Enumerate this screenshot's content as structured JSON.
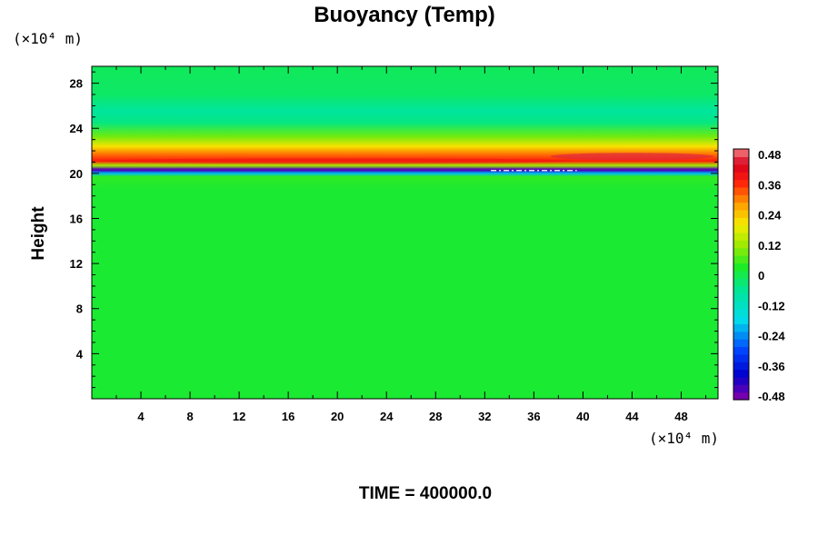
{
  "chart_data": {
    "type": "heatmap",
    "title": "Buoyancy (Temp)",
    "ylabel": "Height",
    "xlabel": "",
    "x_unit": "(×10⁴ m)",
    "y_unit": "(×10⁴ m)",
    "x_ticks": [
      4,
      8,
      12,
      16,
      20,
      24,
      28,
      32,
      36,
      40,
      44,
      48
    ],
    "y_ticks": [
      4,
      8,
      12,
      16,
      20,
      24,
      28
    ],
    "xlim": [
      0,
      51
    ],
    "ylim": [
      0,
      29.5
    ],
    "colorbar": {
      "ticks": [
        "0.48",
        "0.36",
        "0.24",
        "0.12",
        "0",
        "-0.12",
        "-0.24",
        "-0.36",
        "-0.48"
      ],
      "range": [
        -0.48,
        0.48
      ],
      "levels": 33
    },
    "field_profile": [
      {
        "height": 0,
        "value": 0.02
      },
      {
        "height": 18.5,
        "value": 0.02
      },
      {
        "height": 19.7,
        "value": 0.04
      },
      {
        "height": 20.0,
        "value": -0.2
      },
      {
        "height": 20.3,
        "value": -0.42
      },
      {
        "height": 20.7,
        "value": 0.12
      },
      {
        "height": 21.1,
        "value": 0.36
      },
      {
        "height": 21.7,
        "value": 0.3
      },
      {
        "height": 22.4,
        "value": 0.2
      },
      {
        "height": 23.3,
        "value": 0.08
      },
      {
        "height": 24.5,
        "value": -0.04
      },
      {
        "height": 25.5,
        "value": -0.07
      },
      {
        "height": 27.0,
        "value": -0.02
      },
      {
        "height": 29.5,
        "value": -0.01
      }
    ],
    "time_label": "TIME = 400000.0"
  },
  "colors": {
    "axis": "#000000",
    "background": "#ffffff"
  }
}
